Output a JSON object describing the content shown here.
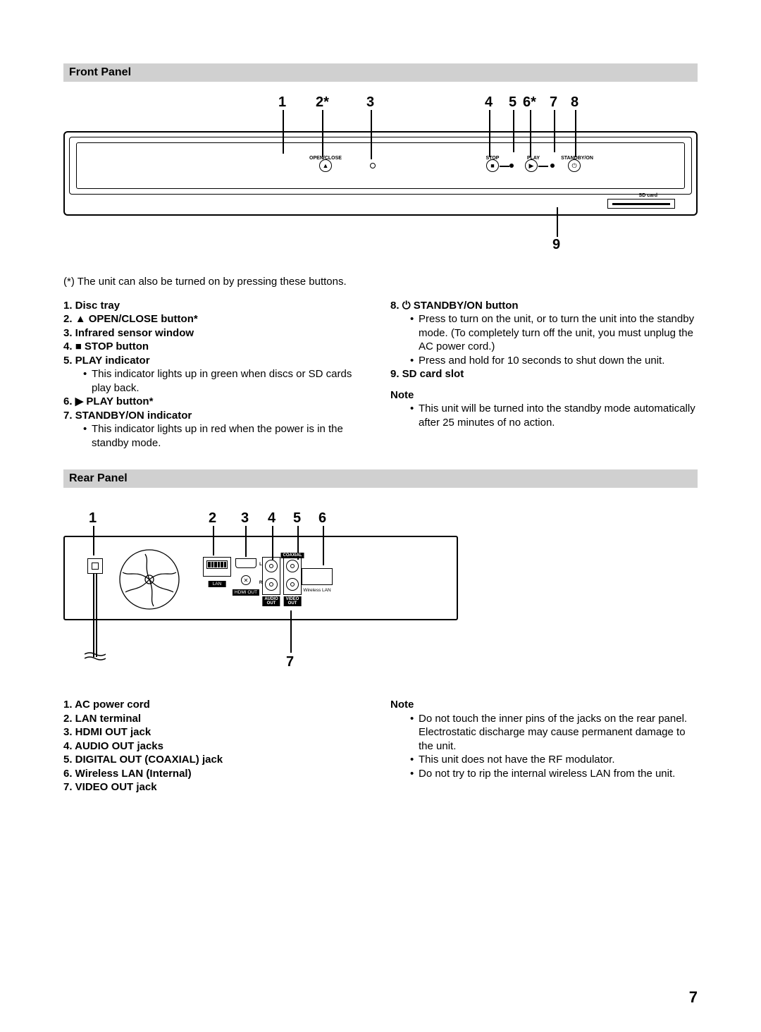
{
  "page_number": "7",
  "colors": {
    "section_header_bg": "#d0d0d0",
    "text": "#000000",
    "background": "#ffffff"
  },
  "front": {
    "header": "Front Panel",
    "callouts": {
      "c1": "1",
      "c2": "2*",
      "c3": "3",
      "c4": "4",
      "c5": "5",
      "c6": "6*",
      "c7": "7",
      "c8": "8",
      "c9": "9"
    },
    "button_labels": {
      "open_close": "OPEN/CLOSE",
      "stop": "STOP",
      "play": "PLAY",
      "standby": "STANDBY/ON",
      "sd": "SD card"
    },
    "button_glyphs": {
      "open_close": "▲",
      "stop": "■",
      "play": "▶",
      "standby": "⏻"
    },
    "asterisk_note": "(*) The unit can also be turned on by pressing these buttons.",
    "items_left": [
      {
        "num": "1.",
        "title": "Disc tray"
      },
      {
        "num": "2.",
        "sym": "▲",
        "title": "OPEN/CLOSE button*"
      },
      {
        "num": "3.",
        "title": "Infrared sensor window"
      },
      {
        "num": "4.",
        "sym": "■",
        "title": "STOP button"
      },
      {
        "num": "5.",
        "title": "PLAY indicator",
        "bullets": [
          "This indicator lights up in green when discs or SD cards play back."
        ]
      },
      {
        "num": "6.",
        "sym": "▶",
        "title": "PLAY button*"
      },
      {
        "num": "7.",
        "title": "STANDBY/ON indicator",
        "bullets": [
          "This indicator lights up in red when the power is in the standby mode."
        ]
      }
    ],
    "items_right": [
      {
        "num": "8.",
        "sym": "⏻",
        "title": "STANDBY/ON button",
        "bullets": [
          "Press to turn on the unit, or to turn the unit into the standby mode. (To completely turn off the unit, you must unplug the AC power cord.)",
          "Press and hold for 10 seconds to shut down the unit."
        ]
      },
      {
        "num": "9.",
        "title": "SD card slot"
      }
    ],
    "note_label": "Note",
    "note_bullets": [
      "This unit will be turned into the standby mode automatically after 25 minutes of no action."
    ]
  },
  "rear": {
    "header": "Rear Panel",
    "callouts": {
      "c1": "1",
      "c2": "2",
      "c3": "3",
      "c4": "4",
      "c5": "5",
      "c6": "6",
      "c7": "7"
    },
    "port_labels": {
      "lan": "LAN",
      "hdmi": "HDMI OUT",
      "coax": "COAXIAL",
      "l": "L",
      "r": "R",
      "audio": "AUDIO\nOUT",
      "video": "VIDEO\nOUT",
      "wlan": "Wireless LAN"
    },
    "items_left": [
      {
        "num": "1.",
        "title": "AC power cord"
      },
      {
        "num": "2.",
        "title": "LAN terminal"
      },
      {
        "num": "3.",
        "title": "HDMI OUT jack"
      },
      {
        "num": "4.",
        "title": "AUDIO OUT jacks"
      },
      {
        "num": "5.",
        "title": "DIGITAL OUT (COAXIAL) jack"
      },
      {
        "num": "6.",
        "title": "Wireless LAN (Internal)"
      },
      {
        "num": "7.",
        "title": "VIDEO OUT jack"
      }
    ],
    "note_label": "Note",
    "note_bullets": [
      "Do not touch the inner pins of the jacks on the rear panel. Electrostatic discharge may cause permanent damage to the unit.",
      "This unit does not have the RF modulator.",
      "Do not try to rip the internal wireless LAN from the unit."
    ]
  }
}
